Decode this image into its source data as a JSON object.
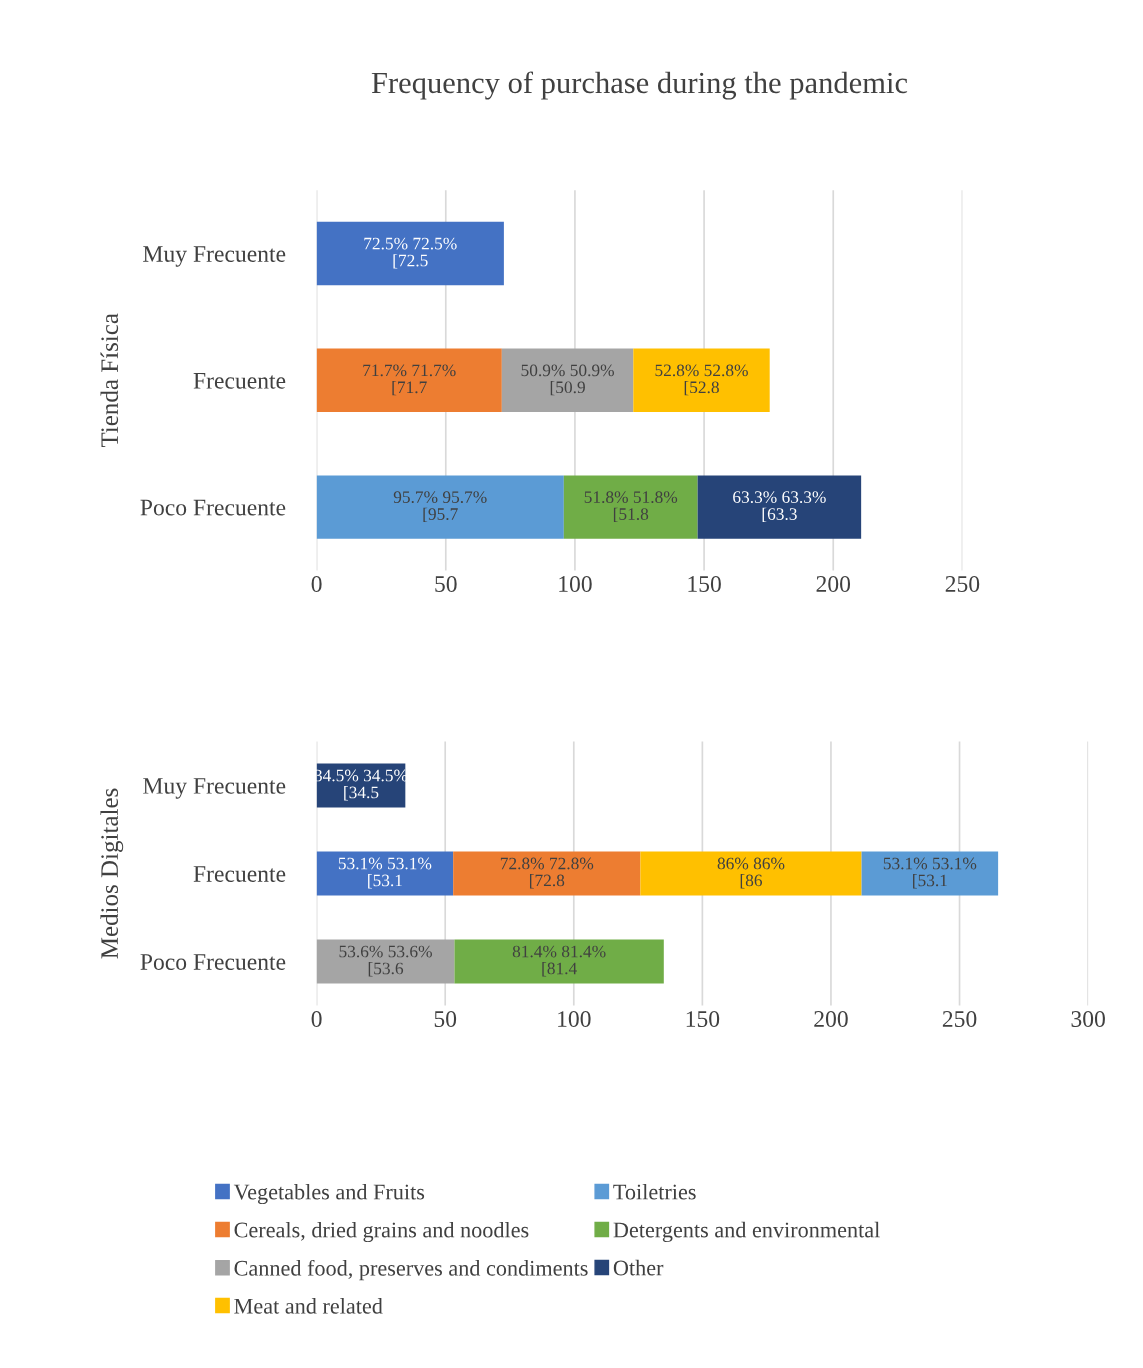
{
  "chart_data": [
    {
      "type": "bar",
      "orientation": "horizontal",
      "stacked": true,
      "title": "Frequency of purchase during the pandemic",
      "ylabel": "Tienda Física",
      "categories": [
        "Muy Frecuente",
        "Frecuente",
        "Poco Frecuente"
      ],
      "xlim": [
        0,
        250
      ],
      "xticks": [
        0,
        50,
        100,
        150,
        200,
        250
      ],
      "grid": "x",
      "series": [
        {
          "color": "#4472c4",
          "values": [
            72.5,
            null,
            null
          ],
          "value_labels": [
            "72.5% 72.5% [72.5",
            null,
            null
          ]
        },
        {
          "color": "#ed7d31",
          "values": [
            null,
            71.7,
            null
          ],
          "value_labels": [
            null,
            "71.7% 71.7% [71.7",
            null
          ]
        },
        {
          "color": "#a5a5a5",
          "values": [
            null,
            50.9,
            null
          ],
          "value_labels": [
            null,
            "50.9% 50.9% [50.9",
            null
          ]
        },
        {
          "color": "#ffc000",
          "values": [
            null,
            52.8,
            null
          ],
          "value_labels": [
            null,
            "52.8% 52.8% [52.8",
            null
          ]
        },
        {
          "color": "#5b9bd5",
          "values": [
            null,
            null,
            95.7
          ],
          "value_labels": [
            null,
            null,
            "95.7% 95.7% [95.7"
          ]
        },
        {
          "color": "#70ad47",
          "values": [
            null,
            null,
            51.8
          ],
          "value_labels": [
            null,
            null,
            "51.8% 51.8% [51.8"
          ]
        },
        {
          "color": "#264478",
          "values": [
            null,
            null,
            63.3
          ],
          "value_labels": [
            null,
            null,
            "63.3% 63.3% [63.3"
          ]
        }
      ]
    },
    {
      "type": "bar",
      "orientation": "horizontal",
      "stacked": true,
      "ylabel": "Medios Digitales",
      "categories": [
        "Muy Frecuente",
        "Frecuente",
        "Poco Frecuente"
      ],
      "xlim": [
        0,
        300
      ],
      "xticks": [
        0,
        50,
        100,
        150,
        200,
        250,
        300
      ],
      "grid": "x",
      "legend": "bottom",
      "series": [
        {
          "name": "Vegetables and Fruits",
          "color": "#4472c4",
          "values": [
            null,
            53.1,
            null
          ],
          "value_labels": [
            null,
            "53.1% 53.1% [53.1",
            null
          ]
        },
        {
          "name": "Cereals, dried grains and noodles",
          "color": "#ed7d31",
          "values": [
            null,
            72.8,
            null
          ],
          "value_labels": [
            null,
            "72.8% 72.8% [72.8",
            null
          ]
        },
        {
          "name": "Canned food, preserves and condiments",
          "color": "#a5a5a5",
          "values": [
            null,
            null,
            53.6
          ],
          "value_labels": [
            null,
            null,
            "53.6% 53.6% [53.6"
          ]
        },
        {
          "name": "Meat and related",
          "color": "#ffc000",
          "values": [
            null,
            86,
            null
          ],
          "value_labels": [
            null,
            "86% 86% [86",
            null
          ]
        },
        {
          "name": "Toiletries",
          "color": "#5b9bd5",
          "values": [
            null,
            53.1,
            null
          ],
          "value_labels": [
            null,
            "53.1% 53.1% [53.1",
            null
          ]
        },
        {
          "name": "Detergents and environmental",
          "color": "#70ad47",
          "values": [
            null,
            null,
            81.4
          ],
          "value_labels": [
            null,
            null,
            "81.4% 81.4% [81.4"
          ]
        },
        {
          "name": "Other",
          "color": "#264478",
          "values": [
            34.5,
            null,
            null
          ],
          "value_labels": [
            "34.5% 34.5% [34.5",
            null,
            null
          ]
        }
      ]
    }
  ]
}
